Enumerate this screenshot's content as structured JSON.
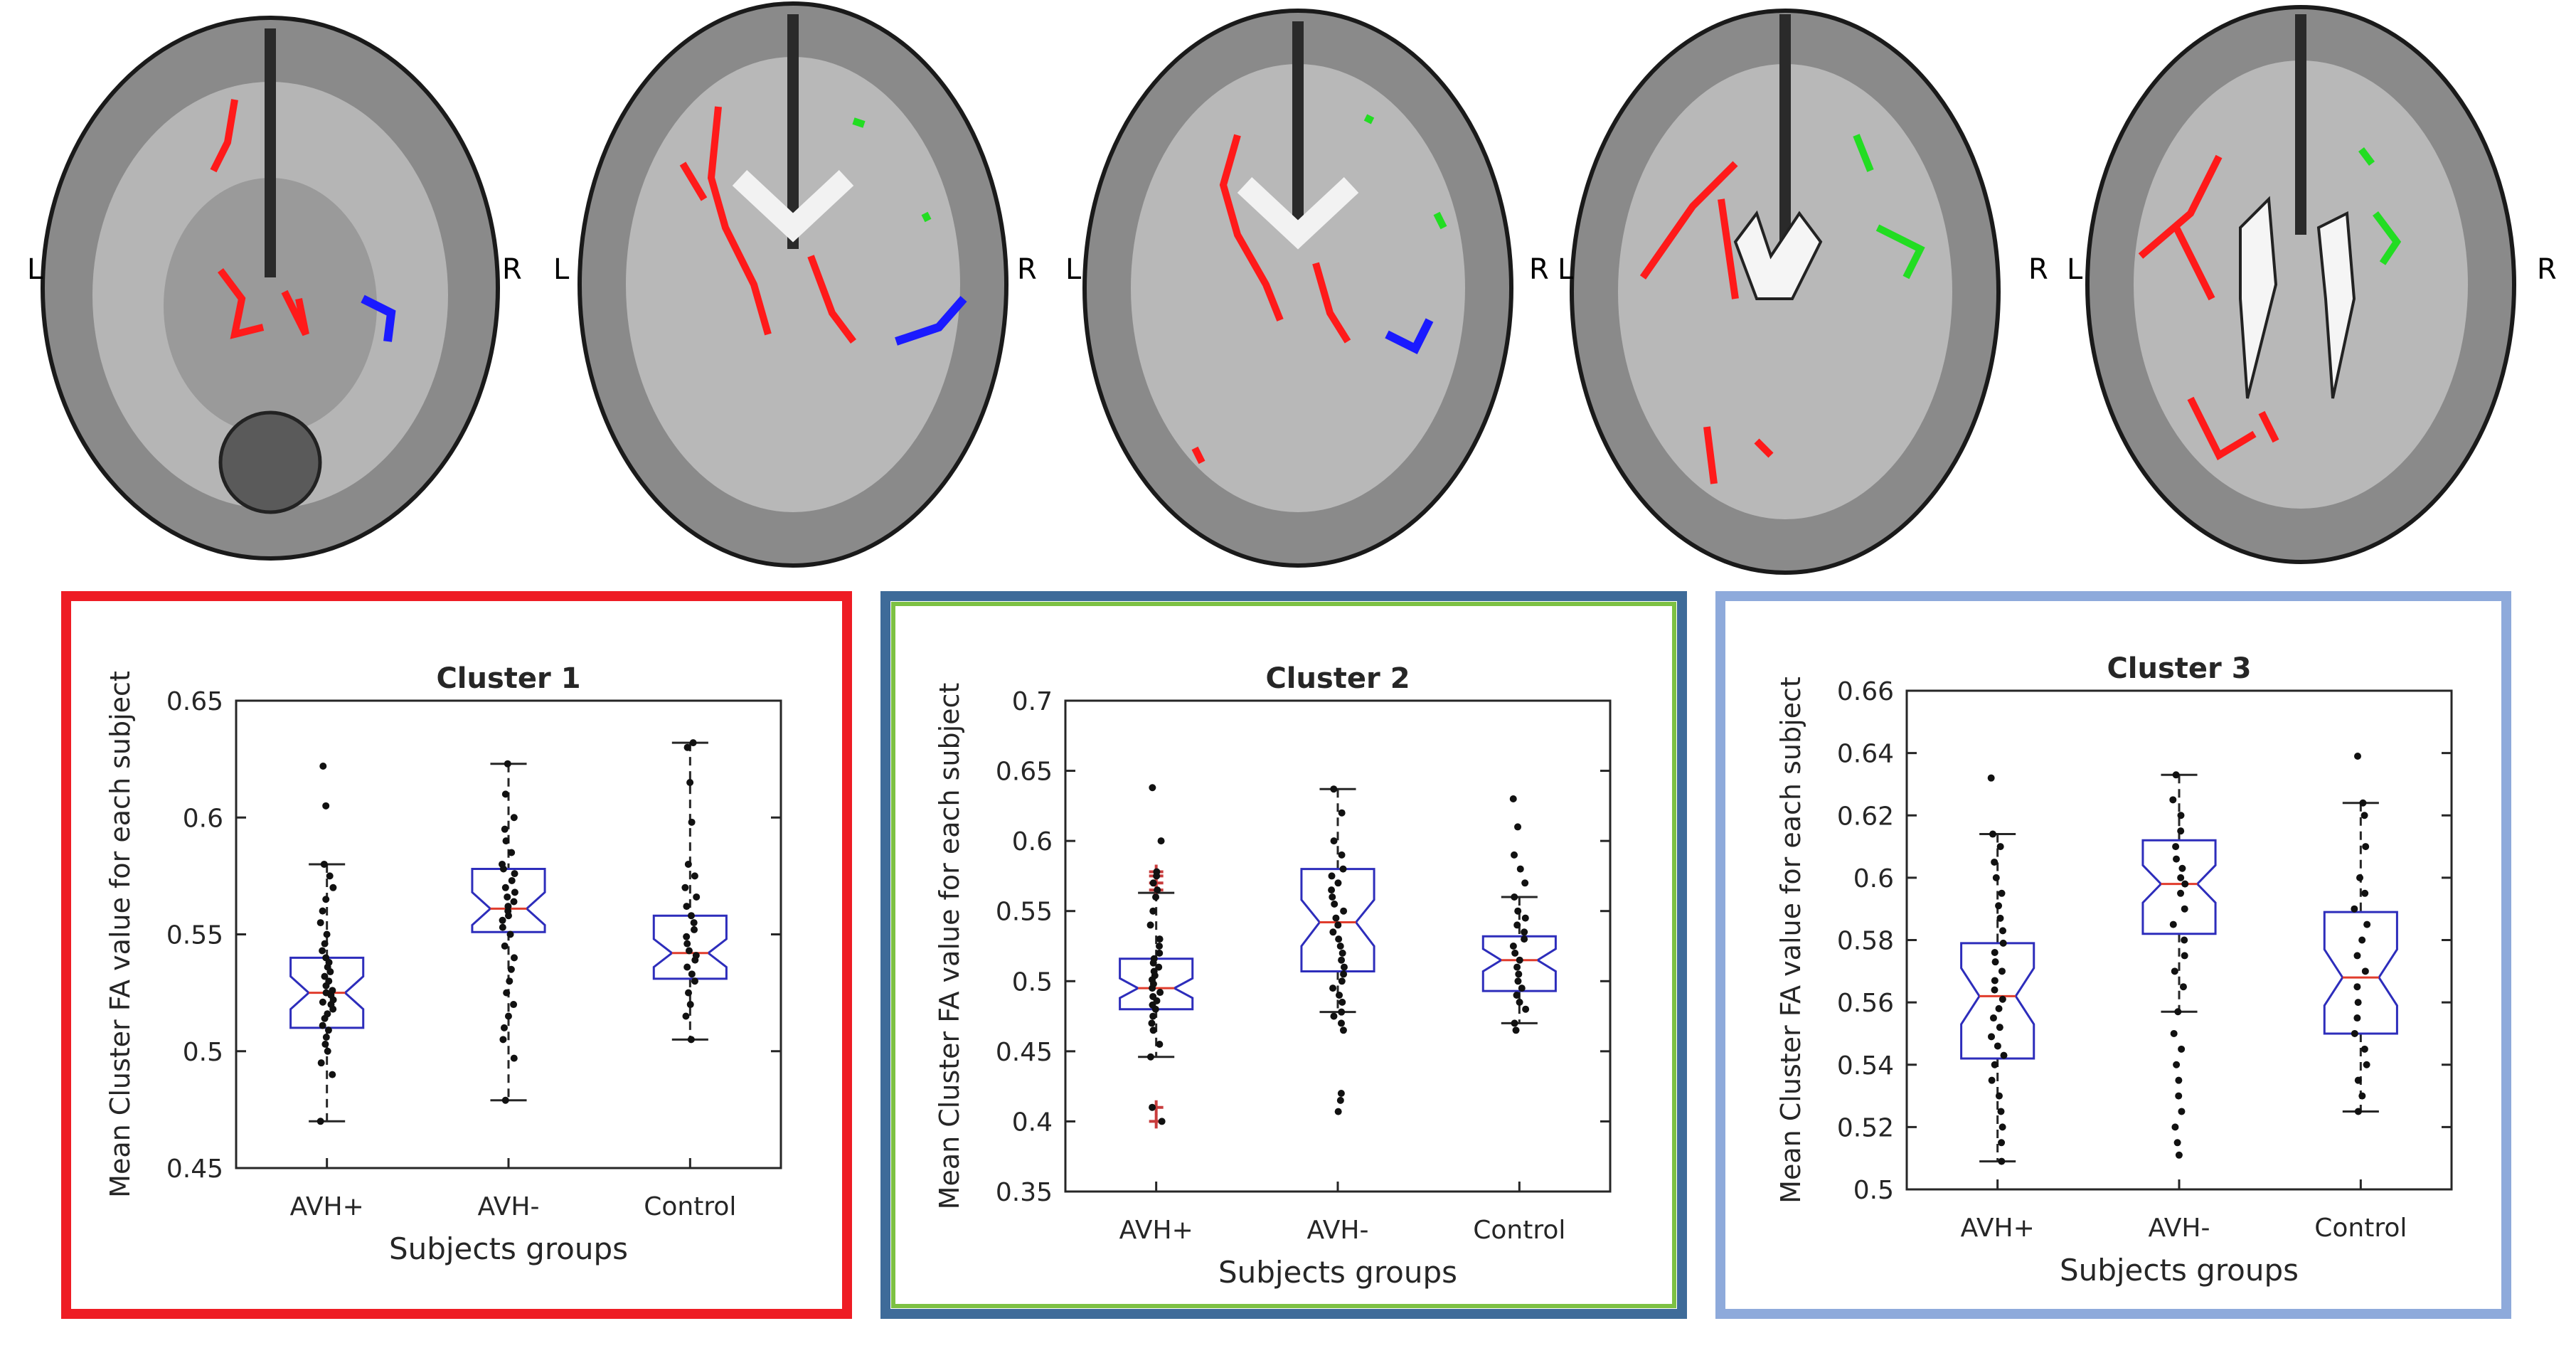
{
  "brain_slices": {
    "left_label": "L",
    "right_label": "R",
    "cluster_colors": [
      "#ff1a1a",
      "#22dd22",
      "#1a1aff"
    ]
  },
  "colors": {
    "frame_cluster_1": "#ee1c24",
    "frame_cluster_2_outer": "#3e6b99",
    "frame_cluster_2_inner": "#7dc143",
    "frame_cluster_3": "#8eaadb",
    "box": "#2d2dbb",
    "median": "#e03c2c",
    "outlier": "#c83c3c"
  },
  "chart_data": [
    {
      "type": "box",
      "title": "Cluster 1",
      "xlabel": "Subjects groups",
      "ylabel": "Mean Cluster FA value for each subject",
      "ylim": [
        0.45,
        0.65
      ],
      "yticks": [
        "0.45",
        "0.5",
        "0.55",
        "0.6",
        "0.65"
      ],
      "categories": [
        "AVH+",
        "AVH-",
        "Control"
      ],
      "notched": true,
      "boxes": [
        {
          "group": "AVH+",
          "q1": 0.51,
          "median": 0.525,
          "q3": 0.54,
          "whisker_low": 0.47,
          "whisker_high": 0.58,
          "notch_low": 0.518,
          "notch_high": 0.532,
          "outliers": []
        },
        {
          "group": "AVH-",
          "q1": 0.551,
          "median": 0.561,
          "q3": 0.578,
          "whisker_low": 0.479,
          "whisker_high": 0.623,
          "notch_low": 0.554,
          "notch_high": 0.568,
          "outliers": []
        },
        {
          "group": "Control",
          "q1": 0.531,
          "median": 0.542,
          "q3": 0.558,
          "whisker_low": 0.505,
          "whisker_high": 0.632,
          "notch_low": 0.536,
          "notch_high": 0.548,
          "outliers": []
        }
      ],
      "points": [
        [
          0.47,
          0.49,
          0.495,
          0.5,
          0.503,
          0.506,
          0.509,
          0.511,
          0.514,
          0.516,
          0.518,
          0.52,
          0.521,
          0.522,
          0.524,
          0.525,
          0.526,
          0.528,
          0.53,
          0.532,
          0.534,
          0.536,
          0.538,
          0.54,
          0.543,
          0.546,
          0.55,
          0.555,
          0.56,
          0.565,
          0.57,
          0.575,
          0.58,
          0.605,
          0.622
        ],
        [
          0.479,
          0.497,
          0.505,
          0.51,
          0.515,
          0.52,
          0.525,
          0.53,
          0.535,
          0.54,
          0.545,
          0.55,
          0.553,
          0.556,
          0.558,
          0.56,
          0.562,
          0.564,
          0.566,
          0.568,
          0.57,
          0.573,
          0.576,
          0.578,
          0.58,
          0.585,
          0.59,
          0.595,
          0.6,
          0.61,
          0.623
        ],
        [
          0.505,
          0.515,
          0.52,
          0.525,
          0.53,
          0.533,
          0.536,
          0.539,
          0.541,
          0.543,
          0.546,
          0.549,
          0.552,
          0.555,
          0.558,
          0.562,
          0.566,
          0.57,
          0.575,
          0.58,
          0.598,
          0.615,
          0.63,
          0.632
        ]
      ]
    },
    {
      "type": "box",
      "title": "Cluster 2",
      "xlabel": "Subjects groups",
      "ylabel": "Mean Cluster FA value for each subject",
      "ylim": [
        0.35,
        0.7
      ],
      "yticks": [
        "0.35",
        "0.4",
        "0.45",
        "0.5",
        "0.55",
        "0.6",
        "0.65",
        "0.7"
      ],
      "categories": [
        "AVH+",
        "AVH-",
        "Control"
      ],
      "notched": true,
      "boxes": [
        {
          "group": "AVH+",
          "q1": 0.48,
          "median": 0.495,
          "q3": 0.516,
          "whisker_low": 0.446,
          "whisker_high": 0.563,
          "notch_low": 0.488,
          "notch_high": 0.502,
          "outliers": [
            0.4,
            0.41,
            0.565,
            0.57,
            0.575,
            0.578
          ]
        },
        {
          "group": "AVH-",
          "q1": 0.507,
          "median": 0.542,
          "q3": 0.58,
          "whisker_low": 0.478,
          "whisker_high": 0.637,
          "notch_low": 0.525,
          "notch_high": 0.558,
          "outliers": []
        },
        {
          "group": "Control",
          "q1": 0.493,
          "median": 0.515,
          "q3": 0.532,
          "whisker_low": 0.47,
          "whisker_high": 0.56,
          "notch_low": 0.507,
          "notch_high": 0.523,
          "outliers": []
        }
      ],
      "points": [
        [
          0.4,
          0.41,
          0.446,
          0.455,
          0.465,
          0.47,
          0.475,
          0.48,
          0.483,
          0.486,
          0.489,
          0.492,
          0.495,
          0.498,
          0.501,
          0.504,
          0.507,
          0.51,
          0.513,
          0.516,
          0.52,
          0.525,
          0.53,
          0.54,
          0.55,
          0.56,
          0.565,
          0.57,
          0.575,
          0.578,
          0.6,
          0.638
        ],
        [
          0.407,
          0.415,
          0.42,
          0.465,
          0.47,
          0.475,
          0.478,
          0.485,
          0.49,
          0.495,
          0.5,
          0.505,
          0.51,
          0.515,
          0.52,
          0.525,
          0.53,
          0.535,
          0.54,
          0.545,
          0.55,
          0.555,
          0.56,
          0.565,
          0.57,
          0.575,
          0.58,
          0.59,
          0.6,
          0.62,
          0.637
        ],
        [
          0.465,
          0.47,
          0.48,
          0.485,
          0.49,
          0.495,
          0.5,
          0.505,
          0.51,
          0.515,
          0.52,
          0.525,
          0.53,
          0.535,
          0.54,
          0.545,
          0.55,
          0.56,
          0.57,
          0.58,
          0.59,
          0.61,
          0.63
        ]
      ]
    },
    {
      "type": "box",
      "title": "Cluster 3",
      "xlabel": "Subjects groups",
      "ylabel": "Mean Cluster FA value for each subject",
      "ylim": [
        0.5,
        0.66
      ],
      "yticks": [
        "0.5",
        "0.52",
        "0.54",
        "0.56",
        "0.58",
        "0.6",
        "0.62",
        "0.64",
        "0.66"
      ],
      "categories": [
        "AVH+",
        "AVH-",
        "Control"
      ],
      "notched": true,
      "boxes": [
        {
          "group": "AVH+",
          "q1": 0.542,
          "median": 0.562,
          "q3": 0.579,
          "whisker_low": 0.509,
          "whisker_high": 0.614,
          "notch_low": 0.553,
          "notch_high": 0.571,
          "outliers": []
        },
        {
          "group": "AVH-",
          "q1": 0.582,
          "median": 0.598,
          "q3": 0.612,
          "whisker_low": 0.557,
          "whisker_high": 0.633,
          "notch_low": 0.592,
          "notch_high": 0.604,
          "outliers": []
        },
        {
          "group": "Control",
          "q1": 0.55,
          "median": 0.568,
          "q3": 0.589,
          "whisker_low": 0.525,
          "whisker_high": 0.624,
          "notch_low": 0.559,
          "notch_high": 0.577,
          "outliers": []
        }
      ],
      "points": [
        [
          0.509,
          0.515,
          0.52,
          0.525,
          0.53,
          0.535,
          0.54,
          0.543,
          0.546,
          0.549,
          0.552,
          0.555,
          0.558,
          0.561,
          0.564,
          0.567,
          0.57,
          0.573,
          0.576,
          0.579,
          0.583,
          0.587,
          0.591,
          0.595,
          0.6,
          0.605,
          0.61,
          0.614,
          0.632
        ],
        [
          0.511,
          0.515,
          0.52,
          0.525,
          0.53,
          0.535,
          0.54,
          0.545,
          0.55,
          0.557,
          0.565,
          0.57,
          0.575,
          0.58,
          0.585,
          0.59,
          0.595,
          0.598,
          0.6,
          0.603,
          0.606,
          0.61,
          0.615,
          0.62,
          0.625,
          0.633
        ],
        [
          0.525,
          0.53,
          0.535,
          0.54,
          0.545,
          0.55,
          0.555,
          0.56,
          0.565,
          0.57,
          0.575,
          0.58,
          0.585,
          0.59,
          0.595,
          0.6,
          0.61,
          0.62,
          0.624,
          0.639
        ]
      ]
    }
  ]
}
